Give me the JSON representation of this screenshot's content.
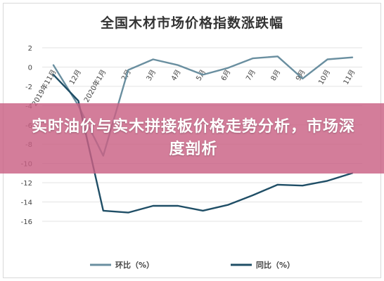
{
  "banner": {
    "text": "实时油价与实木拼接板价格走势分析，市场深度剖析"
  },
  "colors": {
    "huanbi": "#6a8fa0",
    "tongbi": "#1f4e66",
    "grid": "#e3e3e3",
    "banner": "#c96084"
  },
  "chart_data": {
    "type": "line",
    "title": "全国木材市场价格指数涨跌幅",
    "categories": [
      "2019年11月",
      "12月",
      "2020年1月",
      "2月",
      "3月",
      "4月",
      "5月",
      "6月",
      "7月",
      "8月",
      "9月",
      "10月",
      "11月"
    ],
    "series": [
      {
        "name": "环比（%）",
        "values": [
          0.2,
          -4.0,
          -9.2,
          -0.3,
          0.8,
          0.2,
          -0.8,
          -0.1,
          0.9,
          1.1,
          -1.2,
          0.8,
          1.0
        ]
      },
      {
        "name": "同比（%）",
        "values": [
          -0.8,
          -3.5,
          -14.9,
          -15.1,
          -14.4,
          -14.4,
          -14.9,
          -14.3,
          -13.3,
          -12.2,
          -12.3,
          -11.8,
          -11.0
        ]
      }
    ],
    "y_ticks": [
      "2",
      "0",
      "-2",
      "-4",
      "-6",
      "-8",
      "-10",
      "-12",
      "-14",
      "-16"
    ],
    "ylim": [
      -16,
      2
    ],
    "grid": true,
    "legend_position": "bottom"
  }
}
